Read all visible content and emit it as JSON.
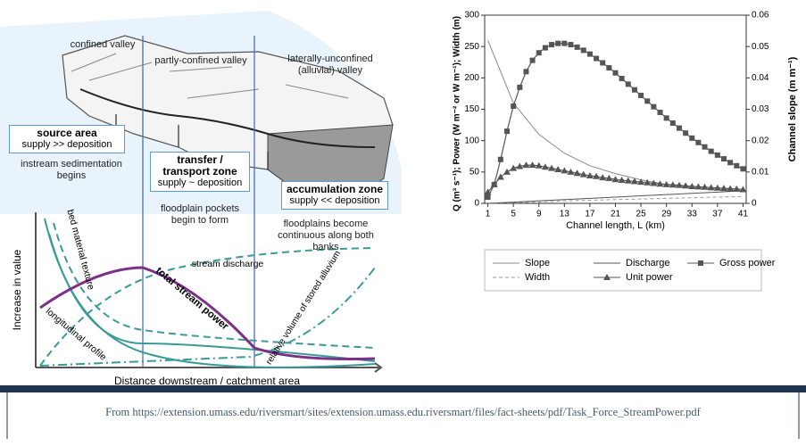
{
  "diagram": {
    "valleys": [
      "confined valley",
      "partly-confined valley",
      "laterally-unconfined (alluvial) valley"
    ],
    "zones": [
      {
        "title": "source area",
        "subtitle": "supply >> deposition",
        "note": "instream sedimentation begins"
      },
      {
        "title": "transfer / transport zone",
        "subtitle": "supply ~ deposition",
        "note": "floodplain pockets begin to form"
      },
      {
        "title": "accumulation zone",
        "subtitle": "supply << deposition",
        "note": "floodplains become continuous along both banks"
      }
    ],
    "curves": [
      "bed material texture",
      "stream discharge",
      "total stream power",
      "relative volume of stored alluvium",
      "longitudinal profile"
    ],
    "y_label": "Increase in value",
    "x_label": "Distance downstream / catchment area"
  },
  "chart_data": {
    "type": "line",
    "x_label": "Channel length, L (km)",
    "y_label": "Q (m³ s⁻¹); Power (W m⁻² or W m⁻¹); Width (m)",
    "y2_label": "Channel slope (m m⁻¹)",
    "xlim": [
      0.5,
      41.5
    ],
    "xticks": [
      1,
      5,
      9,
      13,
      17,
      21,
      25,
      29,
      33,
      37,
      41
    ],
    "ylim": [
      0,
      300
    ],
    "yticks": [
      0,
      50,
      100,
      150,
      200,
      250,
      300
    ],
    "y2lim": [
      0,
      0.06
    ],
    "y2ticks": [
      0,
      0.01,
      0.02,
      0.03,
      0.04,
      0.05,
      0.06
    ],
    "series": [
      {
        "name": "Slope",
        "color": "#8a8a8a",
        "line_style": "solid",
        "marker": "none",
        "axis": "y2",
        "x": [
          1,
          5,
          9,
          13,
          17,
          21,
          25,
          29,
          33,
          37,
          41
        ],
        "values": [
          0.052,
          0.032,
          0.022,
          0.016,
          0.012,
          0.0095,
          0.0075,
          0.006,
          0.005,
          0.0045,
          0.004
        ]
      },
      {
        "name": "Width",
        "color": "#9a9a9a",
        "line_style": "dashed",
        "marker": "none",
        "x": [
          1,
          5,
          9,
          13,
          17,
          21,
          25,
          29,
          33,
          37,
          41
        ],
        "values": [
          0,
          1,
          2,
          4,
          5,
          6,
          7,
          8,
          9,
          10,
          11
        ]
      },
      {
        "name": "Discharge",
        "color": "#555555",
        "line_style": "solid",
        "marker": "none",
        "x": [
          1,
          5,
          9,
          13,
          17,
          21,
          25,
          29,
          33,
          37,
          41
        ],
        "values": [
          0,
          2,
          4,
          6,
          8,
          10,
          12,
          14,
          16,
          18,
          20
        ]
      },
      {
        "name": "Unit power",
        "color": "#555555",
        "line_style": "solid",
        "marker": "triangle",
        "x": [
          1,
          2,
          3,
          4,
          5,
          6,
          7,
          8,
          9,
          10,
          11,
          12,
          13,
          14,
          15,
          16,
          17,
          18,
          19,
          20,
          21,
          22,
          23,
          24,
          25,
          26,
          27,
          28,
          29,
          30,
          31,
          32,
          33,
          34,
          35,
          36,
          37,
          38,
          39,
          40,
          41
        ],
        "values": [
          18,
          30,
          42,
          50,
          56,
          59,
          61,
          61,
          60,
          58,
          56,
          54,
          52,
          50,
          48,
          46,
          44,
          43,
          41,
          40,
          38,
          37,
          36,
          35,
          34,
          33,
          32,
          31,
          30,
          29.5,
          29,
          28,
          27,
          26.5,
          26,
          25,
          24.5,
          24,
          23.5,
          23,
          22
        ]
      },
      {
        "name": "Gross power",
        "color": "#555555",
        "line_style": "solid",
        "marker": "square",
        "x": [
          1,
          2,
          3,
          4,
          5,
          6,
          7,
          8,
          9,
          10,
          11,
          12,
          13,
          14,
          15,
          16,
          17,
          18,
          19,
          20,
          21,
          22,
          23,
          24,
          25,
          26,
          27,
          28,
          29,
          30,
          31,
          32,
          33,
          34,
          35,
          36,
          37,
          38,
          39,
          40,
          41
        ],
        "values": [
          10,
          30,
          70,
          115,
          155,
          185,
          210,
          228,
          240,
          248,
          253,
          255,
          255,
          253,
          249,
          244,
          238,
          231,
          224,
          216,
          208,
          199,
          190,
          181,
          172,
          163,
          154,
          145,
          136,
          128,
          120,
          112,
          104,
          97,
          90,
          83,
          77,
          71,
          65,
          60,
          55
        ]
      }
    ]
  },
  "footer": "From https://extension.umass.edu/riversmart/sites/extension.umass.edu.riversmart/files/fact-sheets/pdf/Task_Force_StreamPower.pdf"
}
